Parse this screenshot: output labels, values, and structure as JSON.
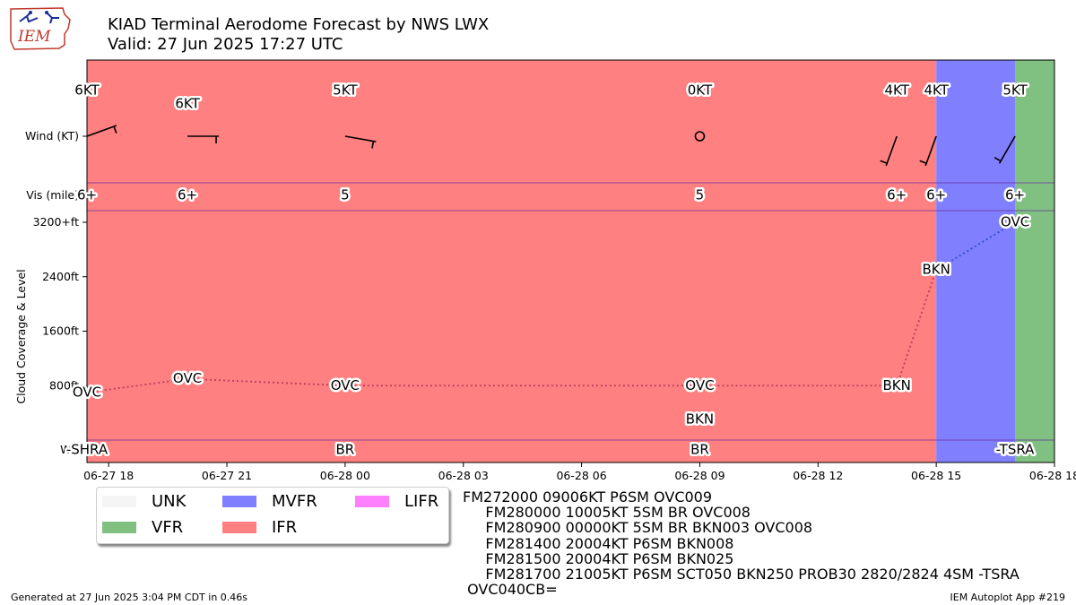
{
  "header": {
    "title": "KIAD Terminal Aerodome Forecast by NWS LWX",
    "subtitle": "Valid: 27 Jun 2025 17:27 UTC",
    "logo_text": "IEM"
  },
  "colors": {
    "IFR": "#ff8080",
    "MVFR": "#8080ff",
    "VFR": "#80c080",
    "LIFR": "#ff80ff",
    "UNK": "#f5f5f5",
    "line_ifr": "#c04060",
    "line_mvfr": "#3050d0"
  },
  "chart_data": {
    "type": "line",
    "row_labels": {
      "wind": "Wind (KT)",
      "vis": "Vis (mile)",
      "wx": "WX"
    },
    "ylabel": "Cloud Coverage & Level",
    "y_ticks": [
      {
        "value": 800,
        "label": "800ft"
      },
      {
        "value": 1600,
        "label": "1600ft"
      },
      {
        "value": 2400,
        "label": "2400ft"
      },
      {
        "value": 3200,
        "label": "3200+ft"
      }
    ],
    "ylim": [
      0,
      3200
    ],
    "x_ticks": [
      {
        "hour": 18,
        "label": "06-27 18"
      },
      {
        "hour": 21,
        "label": "06-27 21"
      },
      {
        "hour": 24,
        "label": "06-28 00"
      },
      {
        "hour": 27,
        "label": "06-28 03"
      },
      {
        "hour": 30,
        "label": "06-28 06"
      },
      {
        "hour": 33,
        "label": "06-28 09"
      },
      {
        "hour": 36,
        "label": "06-28 12"
      },
      {
        "hour": 39,
        "label": "06-28 15"
      },
      {
        "hour": 42,
        "label": "06-28 18"
      }
    ],
    "xlim": [
      17.45,
      42
    ],
    "category_bands": [
      {
        "from": 17.45,
        "to": 39.0,
        "category": "IFR"
      },
      {
        "from": 39.0,
        "to": 41.0,
        "category": "MVFR"
      },
      {
        "from": 41.0,
        "to": 42.0,
        "category": "VFR"
      }
    ],
    "periods": [
      {
        "hour": 17.45,
        "wind_dir": 70,
        "wind_kt": 6,
        "wind_label": "6KT",
        "vis_label": "6+",
        "wx": "-SHRA",
        "clouds": [
          {
            "cover": "OVC",
            "level": 700
          }
        ]
      },
      {
        "hour": 20.0,
        "wind_dir": 90,
        "wind_kt": 6,
        "wind_label": "6KT",
        "vis_label": "6+",
        "wx": "",
        "clouds": [
          {
            "cover": "OVC",
            "level": 900
          }
        ]
      },
      {
        "hour": 24.0,
        "wind_dir": 100,
        "wind_kt": 5,
        "wind_label": "5KT",
        "vis_label": "5",
        "wx": "BR",
        "clouds": [
          {
            "cover": "OVC",
            "level": 800
          }
        ]
      },
      {
        "hour": 33.0,
        "wind_dir": 0,
        "wind_kt": 0,
        "wind_label": "0KT",
        "vis_label": "5",
        "wx": "BR",
        "clouds": [
          {
            "cover": "BKN",
            "level": 300
          },
          {
            "cover": "OVC",
            "level": 800
          }
        ]
      },
      {
        "hour": 38.0,
        "wind_dir": 200,
        "wind_kt": 4,
        "wind_label": "4KT",
        "vis_label": "6+",
        "wx": "",
        "clouds": [
          {
            "cover": "BKN",
            "level": 800
          }
        ]
      },
      {
        "hour": 39.0,
        "wind_dir": 200,
        "wind_kt": 4,
        "wind_label": "4KT",
        "vis_label": "6+",
        "wx": "",
        "clouds": [
          {
            "cover": "BKN",
            "level": 2500
          }
        ]
      },
      {
        "hour": 41.0,
        "wind_dir": 210,
        "wind_kt": 5,
        "wind_label": "5KT",
        "vis_label": "6+",
        "wx": "-TSRA",
        "clouds": [
          {
            "cover": "OVC",
            "level": 3200
          }
        ]
      }
    ]
  },
  "legend": {
    "items": [
      {
        "label": "UNK",
        "key": "UNK"
      },
      {
        "label": "MVFR",
        "key": "MVFR"
      },
      {
        "label": "LIFR",
        "key": "LIFR"
      },
      {
        "label": "VFR",
        "key": "VFR"
      },
      {
        "label": "IFR",
        "key": "IFR"
      }
    ]
  },
  "taf_text": "FM272000 09006KT P6SM OVC009\n     FM280000 10005KT 5SM BR OVC008\n     FM280900 00000KT 5SM BR BKN003 OVC008\n     FM281400 20004KT P6SM BKN008\n     FM281500 20004KT P6SM BKN025\n     FM281700 21005KT P6SM SCT050 BKN250 PROB30 2820/2824 4SM -TSRA\n OVC040CB=",
  "footer": {
    "generated": "Generated at 27 Jun 2025 3:04 PM CDT in 0.46s",
    "app": "IEM Autoplot App #219"
  }
}
